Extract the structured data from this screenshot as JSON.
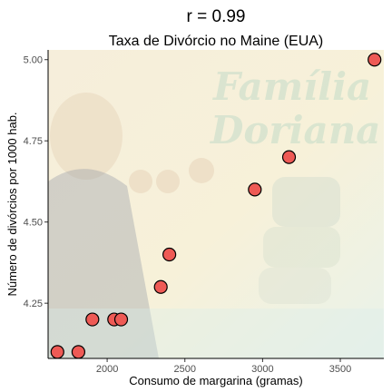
{
  "title": "r =  0.99",
  "chart_data": {
    "type": "scatter",
    "title": "Taxa de Divórcio no Maine (EUA)",
    "xlabel": "Consumo de margarina (gramas)",
    "ylabel": "Número de divórcios por 1000 hab.",
    "xlim": [
      1620,
      3780
    ],
    "ylim": [
      4.08,
      5.03
    ],
    "xticks": [
      2000,
      2500,
      3000,
      3500
    ],
    "yticks": [
      4.25,
      4.5,
      4.75,
      5.0
    ],
    "xtick_labels": [
      "2000",
      "2500",
      "3000",
      "3500"
    ],
    "ytick_labels": [
      "4.25",
      "4.50",
      "4.75",
      "5.00"
    ],
    "grid": false,
    "points": [
      {
        "x": 1680,
        "y": 4.1
      },
      {
        "x": 1815,
        "y": 4.1
      },
      {
        "x": 1905,
        "y": 4.2
      },
      {
        "x": 2045,
        "y": 4.2
      },
      {
        "x": 2090,
        "y": 4.2
      },
      {
        "x": 2345,
        "y": 4.3
      },
      {
        "x": 2400,
        "y": 4.4
      },
      {
        "x": 2950,
        "y": 4.6
      },
      {
        "x": 3170,
        "y": 4.7
      },
      {
        "x": 3720,
        "y": 5.0
      }
    ]
  },
  "background": {
    "lines": [
      "Família",
      "Doriana"
    ]
  }
}
